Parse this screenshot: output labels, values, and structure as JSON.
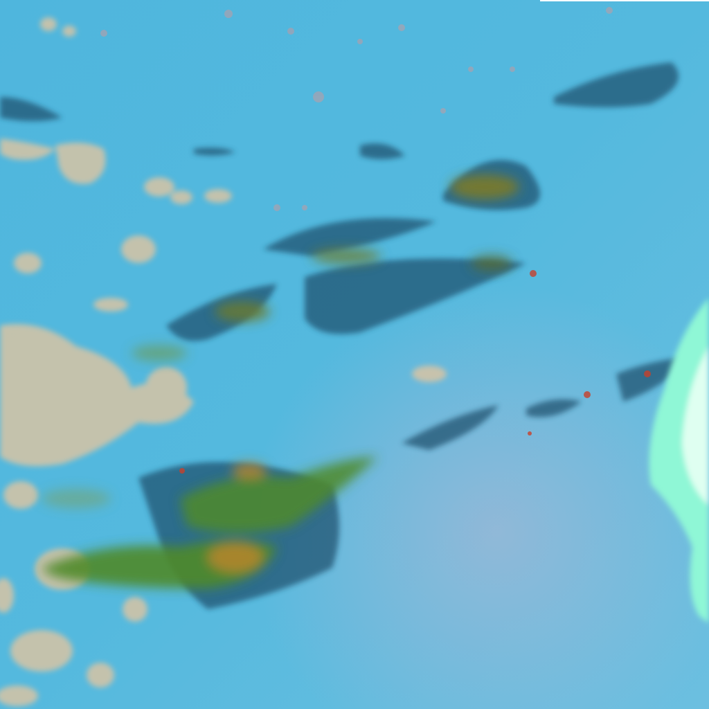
{
  "image": {
    "kind": "false-color satellite imagery",
    "colors": {
      "ocean_base": "#4fb6dd",
      "ocean_light": "#7cc6e4",
      "haze_pink": "#b9b6d2",
      "low_cloud_tan": "#d8c4a4",
      "cloud_shadow_dark": "#1f4d6a",
      "high_cloud_green": "#4f8a2a",
      "high_cloud_orange": "#b8862a",
      "bright_cloud_cyan": "#8ff7d6"
    }
  }
}
